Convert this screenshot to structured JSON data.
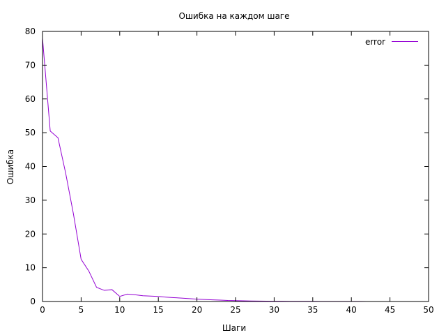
{
  "chart_data": {
    "type": "line",
    "title": "Ошибка на каждом шаге",
    "xlabel": "Шаги",
    "ylabel": "Ошибка",
    "xlim": [
      0,
      50
    ],
    "ylim": [
      0,
      80
    ],
    "xticks": [
      0,
      5,
      10,
      15,
      20,
      25,
      30,
      35,
      40,
      45,
      50
    ],
    "yticks": [
      0,
      10,
      20,
      30,
      40,
      50,
      60,
      70,
      80
    ],
    "grid": false,
    "legend_position": "top-right",
    "series": [
      {
        "name": "error",
        "color": "#9400d3",
        "x": [
          0,
          1,
          2,
          3,
          4,
          5,
          6,
          7,
          8,
          9,
          10,
          11,
          12,
          13,
          14,
          15,
          16,
          17,
          18,
          19,
          20,
          21,
          22,
          23,
          24,
          25,
          26,
          27,
          28,
          29,
          30,
          31,
          32,
          33,
          34,
          35,
          36,
          37,
          38,
          39,
          40,
          41,
          42,
          43,
          44,
          45,
          46,
          47,
          48,
          49
        ],
        "y": [
          78,
          50.5,
          48.5,
          38,
          26,
          12.5,
          9,
          4.2,
          3.3,
          3.5,
          1.5,
          2.2,
          2.0,
          1.7,
          1.6,
          1.5,
          1.3,
          1.15,
          1.0,
          0.85,
          0.7,
          0.6,
          0.5,
          0.4,
          0.3,
          0.25,
          0.2,
          0.15,
          0.12,
          0.1,
          0.08,
          0.07,
          0.06,
          0.05,
          0.04,
          0.04,
          0.03,
          0.03,
          0.02,
          0.02,
          0.02,
          0.02,
          0.01,
          0.01,
          0.01,
          0.01,
          0.01,
          0.01,
          0.01,
          0.01
        ]
      }
    ]
  }
}
